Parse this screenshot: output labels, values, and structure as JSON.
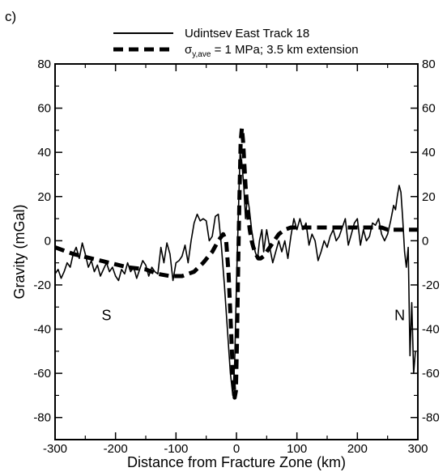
{
  "panel_label": "c)",
  "chart_data": {
    "type": "line",
    "xlabel": "Distance from Fracture Zone (km)",
    "ylabel": "Gravity (mGal)",
    "xlim": [
      -300,
      300
    ],
    "ylim": [
      -90,
      80
    ],
    "xticks": [
      -300,
      -200,
      -100,
      0,
      100,
      200,
      300
    ],
    "yticks": [
      -80,
      -60,
      -40,
      -20,
      0,
      20,
      40,
      60,
      80
    ],
    "right_yticks": [
      -80,
      -60,
      -40,
      -20,
      0,
      20,
      40,
      60,
      80
    ],
    "legend_position": "top",
    "annotations": [
      {
        "text": "S",
        "x": -215,
        "y": -36
      },
      {
        "text": "N",
        "x": 270,
        "y": -36
      }
    ],
    "series": [
      {
        "name": "Udintsev East Track 18",
        "style": "solid",
        "color": "#000000",
        "x": [
          -300,
          -295,
          -290,
          -285,
          -280,
          -275,
          -270,
          -265,
          -260,
          -255,
          -250,
          -245,
          -240,
          -235,
          -230,
          -225,
          -220,
          -215,
          -210,
          -205,
          -200,
          -195,
          -190,
          -185,
          -180,
          -175,
          -170,
          -165,
          -160,
          -155,
          -150,
          -145,
          -140,
          -135,
          -130,
          -125,
          -120,
          -115,
          -110,
          -105,
          -100,
          -95,
          -90,
          -85,
          -80,
          -75,
          -70,
          -65,
          -60,
          -55,
          -50,
          -45,
          -40,
          -35,
          -30,
          -25,
          -20,
          -15,
          -10,
          -6,
          -3,
          0,
          3,
          6,
          9,
          12,
          15,
          18,
          21,
          25,
          28,
          31,
          35,
          38,
          42,
          45,
          50,
          55,
          60,
          65,
          70,
          75,
          80,
          85,
          90,
          95,
          100,
          105,
          110,
          115,
          120,
          125,
          130,
          135,
          140,
          145,
          150,
          155,
          160,
          165,
          170,
          175,
          180,
          185,
          190,
          195,
          200,
          205,
          210,
          215,
          220,
          225,
          230,
          235,
          240,
          245,
          250,
          255,
          260,
          263,
          266,
          269,
          272,
          275,
          278,
          281,
          284,
          287,
          290
        ],
        "y": [
          -15,
          -13,
          -17,
          -14,
          -10,
          -12,
          -6,
          -3,
          -8,
          -1,
          -6,
          -12,
          -9,
          -14,
          -11,
          -16,
          -13,
          -10,
          -14,
          -12,
          -16,
          -18,
          -13,
          -15,
          -10,
          -14,
          -12,
          -17,
          -13,
          -9,
          -11,
          -16,
          -12,
          -14,
          -15,
          -3,
          -10,
          -1,
          -6,
          -18,
          -10,
          -9,
          -7,
          -2,
          -10,
          0,
          8,
          12,
          9,
          10,
          9,
          0,
          2,
          11,
          12,
          -2,
          -20,
          -40,
          -60,
          -70,
          -55,
          -20,
          10,
          40,
          35,
          25,
          10,
          20,
          15,
          5,
          0,
          -5,
          -8,
          0,
          5,
          -5,
          5,
          -3,
          -10,
          -5,
          0,
          -5,
          0,
          -8,
          2,
          10,
          5,
          10,
          5,
          8,
          -2,
          3,
          0,
          -9,
          -5,
          0,
          -3,
          2,
          5,
          0,
          2,
          6,
          10,
          -2,
          3,
          8,
          10,
          -2,
          5,
          0,
          2,
          8,
          7,
          10,
          3,
          0,
          3,
          9,
          16,
          14,
          20,
          25,
          22,
          10,
          -5,
          -12,
          -3,
          -52,
          -28
        ],
        "x_end": [
          290,
          293,
          296
        ],
        "y_end": [
          -28,
          -60,
          -50
        ]
      },
      {
        "name": "σy,ave = 1 MPa; 3.5 km extension",
        "style": "dashed",
        "color": "#000000",
        "x": [
          -300,
          -270,
          -240,
          -210,
          -180,
          -150,
          -130,
          -110,
          -90,
          -70,
          -55,
          -40,
          -30,
          -22,
          -17,
          -13,
          -9,
          -6,
          -3,
          -1,
          1,
          3,
          5,
          7,
          9,
          11,
          13,
          15,
          17,
          19,
          22,
          25,
          28,
          32,
          36,
          40,
          45,
          50,
          55,
          60,
          65,
          70,
          75,
          80,
          90,
          100,
          110,
          120,
          130,
          140,
          150,
          160,
          170,
          180,
          190,
          200,
          210,
          220,
          230,
          240,
          250,
          260,
          270,
          280,
          290,
          300
        ],
        "y": [
          -3,
          -6,
          -8,
          -10,
          -12,
          -13,
          -15,
          -16,
          -16,
          -14,
          -10,
          -5,
          0,
          3,
          0,
          -15,
          -40,
          -60,
          -71,
          -68,
          -45,
          -10,
          20,
          45,
          51,
          45,
          35,
          25,
          18,
          12,
          5,
          0,
          -3,
          -6,
          -8,
          -8,
          -7,
          -5,
          -3,
          -1,
          1,
          3,
          4,
          5,
          6,
          6,
          6,
          6,
          6,
          6,
          6,
          6,
          6,
          6,
          6,
          6,
          6,
          6,
          6,
          6,
          5,
          5,
          5,
          5,
          5,
          5
        ]
      }
    ]
  }
}
